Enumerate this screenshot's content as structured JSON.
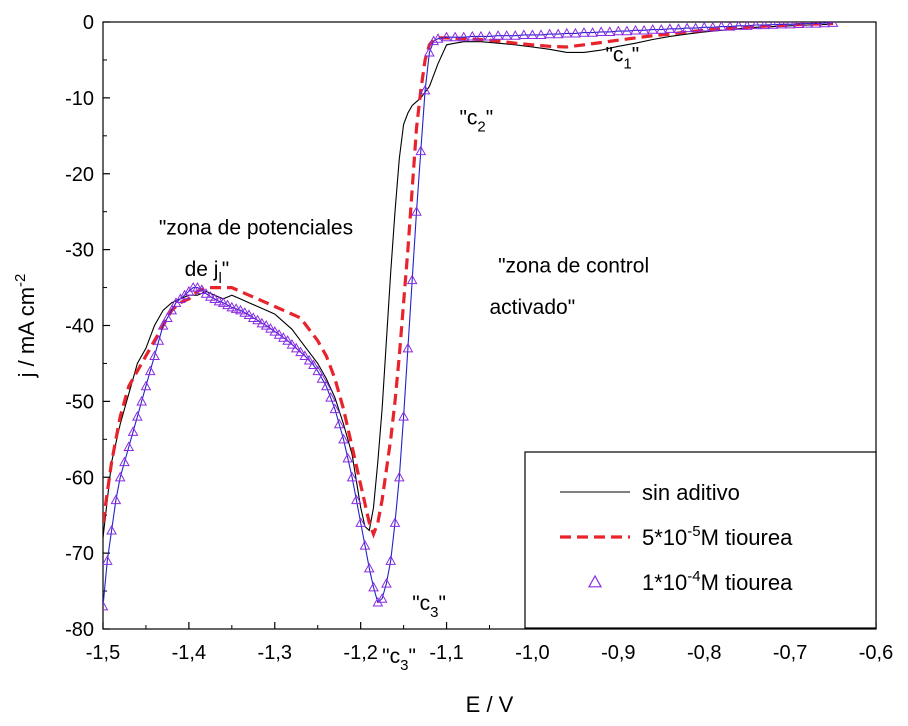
{
  "chart_data": {
    "type": "line",
    "title": "",
    "xlabel": "E / V",
    "ylabel_main": "j / mA cm",
    "ylabel_sup": "-2",
    "xlim": [
      -1.5,
      -0.6
    ],
    "ylim": [
      -80,
      0
    ],
    "x_ticks": [
      -1.5,
      -1.4,
      -1.3,
      -1.2,
      -1.1,
      -1.0,
      -0.9,
      -0.8,
      -0.7,
      -0.6
    ],
    "x_tick_labels": [
      "-1,5",
      "-1,4",
      "-1,3",
      "-1,2",
      "-1,1",
      "-1,0",
      "-0,9",
      "-0,8",
      "-0,7",
      "-0,6"
    ],
    "y_ticks": [
      0,
      -10,
      -20,
      -30,
      -40,
      -50,
      -60,
      -70,
      -80
    ],
    "y_tick_labels": [
      "0",
      "-10",
      "-20",
      "-30",
      "-40",
      "-50",
      "-60",
      "-70",
      "-80"
    ],
    "grid": false,
    "legend_position": "bottom-right",
    "series": [
      {
        "name": "sin aditivo",
        "style": "solid-thin",
        "color": "#000000",
        "x": [
          -1.5,
          -1.49,
          -1.48,
          -1.47,
          -1.46,
          -1.45,
          -1.44,
          -1.43,
          -1.42,
          -1.41,
          -1.4,
          -1.39,
          -1.38,
          -1.37,
          -1.36,
          -1.35,
          -1.34,
          -1.33,
          -1.32,
          -1.31,
          -1.3,
          -1.29,
          -1.28,
          -1.27,
          -1.26,
          -1.25,
          -1.24,
          -1.23,
          -1.22,
          -1.21,
          -1.2,
          -1.195,
          -1.19,
          -1.185,
          -1.18,
          -1.175,
          -1.17,
          -1.165,
          -1.16,
          -1.155,
          -1.15,
          -1.145,
          -1.14,
          -1.135,
          -1.13,
          -1.12,
          -1.11,
          -1.1,
          -1.09,
          -1.08,
          -1.06,
          -1.04,
          -1.02,
          -1.0,
          -0.98,
          -0.96,
          -0.94,
          -0.92,
          -0.9,
          -0.88,
          -0.86,
          -0.84,
          -0.82,
          -0.8,
          -0.78,
          -0.76,
          -0.74,
          -0.72,
          -0.7,
          -0.68,
          -0.65
        ],
        "y": [
          -68,
          -58,
          -53,
          -49,
          -45,
          -43,
          -40,
          -38,
          -37,
          -36.5,
          -36,
          -36,
          -35.5,
          -36,
          -36.5,
          -36,
          -36.5,
          -37,
          -37.5,
          -38,
          -38.5,
          -39.5,
          -40.5,
          -42,
          -43.5,
          -45,
          -47,
          -49.5,
          -53,
          -57,
          -64,
          -66.5,
          -67,
          -64,
          -58,
          -51,
          -42,
          -33,
          -25,
          -18,
          -13.5,
          -12,
          -11,
          -10.5,
          -10,
          -8.5,
          -5.5,
          -3,
          -2.8,
          -2.6,
          -2.6,
          -2.8,
          -3,
          -3.3,
          -3.6,
          -4,
          -4,
          -3.7,
          -3.2,
          -2.8,
          -2.3,
          -1.9,
          -1.6,
          -1.3,
          -1.1,
          -0.9,
          -0.7,
          -0.6,
          -0.5,
          -0.4,
          -0.3
        ]
      },
      {
        "name": "5*10-5M tiourea",
        "legend_pre": "5*10",
        "legend_sup": "-5",
        "legend_post": "M tiourea",
        "style": "dashed-thick",
        "color": "#e8232b",
        "x": [
          -1.5,
          -1.49,
          -1.48,
          -1.47,
          -1.46,
          -1.45,
          -1.44,
          -1.43,
          -1.42,
          -1.41,
          -1.4,
          -1.39,
          -1.38,
          -1.37,
          -1.36,
          -1.35,
          -1.34,
          -1.33,
          -1.32,
          -1.31,
          -1.3,
          -1.29,
          -1.28,
          -1.27,
          -1.26,
          -1.25,
          -1.24,
          -1.23,
          -1.22,
          -1.21,
          -1.2,
          -1.19,
          -1.185,
          -1.18,
          -1.175,
          -1.17,
          -1.165,
          -1.16,
          -1.155,
          -1.15,
          -1.145,
          -1.14,
          -1.135,
          -1.13,
          -1.125,
          -1.12,
          -1.115,
          -1.11,
          -1.1,
          -1.08,
          -1.06,
          -1.04,
          -1.02,
          -1.0,
          -0.98,
          -0.96,
          -0.94,
          -0.92,
          -0.9,
          -0.88,
          -0.86,
          -0.84,
          -0.82,
          -0.8,
          -0.78,
          -0.76,
          -0.74,
          -0.72,
          -0.7,
          -0.68,
          -0.65
        ],
        "y": [
          -66,
          -58,
          -52,
          -48,
          -46,
          -44,
          -42,
          -40,
          -38,
          -37,
          -36.5,
          -35.5,
          -35,
          -35,
          -35,
          -35,
          -35.5,
          -36,
          -36.5,
          -37,
          -37.5,
          -38,
          -38.5,
          -39,
          -40.5,
          -42,
          -44,
          -47,
          -51,
          -56,
          -61,
          -66,
          -67.5,
          -66,
          -63,
          -59,
          -55,
          -50,
          -44,
          -37,
          -30,
          -22,
          -14,
          -9,
          -5,
          -3,
          -2.3,
          -2.1,
          -2.1,
          -2.2,
          -2.3,
          -2.5,
          -2.8,
          -3,
          -3.2,
          -3.3,
          -3,
          -2.7,
          -2.4,
          -2.1,
          -1.8,
          -1.6,
          -1.3,
          -1.1,
          -0.9,
          -0.8,
          -0.6,
          -0.5,
          -0.4,
          -0.3,
          -0.2
        ]
      },
      {
        "name": "1*10-4M tiourea",
        "legend_pre": "1*10",
        "legend_sup": "-4",
        "legend_post": "M tiourea",
        "style": "triangles-line",
        "color": "#8a2be2",
        "line_color": "#2222cc",
        "x": [
          -1.5,
          -1.495,
          -1.49,
          -1.485,
          -1.48,
          -1.475,
          -1.47,
          -1.465,
          -1.46,
          -1.455,
          -1.45,
          -1.445,
          -1.44,
          -1.435,
          -1.43,
          -1.425,
          -1.42,
          -1.415,
          -1.41,
          -1.405,
          -1.4,
          -1.395,
          -1.39,
          -1.385,
          -1.38,
          -1.375,
          -1.37,
          -1.365,
          -1.36,
          -1.355,
          -1.35,
          -1.345,
          -1.34,
          -1.335,
          -1.33,
          -1.325,
          -1.32,
          -1.315,
          -1.31,
          -1.305,
          -1.3,
          -1.295,
          -1.29,
          -1.285,
          -1.28,
          -1.275,
          -1.27,
          -1.265,
          -1.26,
          -1.255,
          -1.25,
          -1.245,
          -1.24,
          -1.235,
          -1.23,
          -1.225,
          -1.22,
          -1.215,
          -1.21,
          -1.205,
          -1.2,
          -1.195,
          -1.19,
          -1.185,
          -1.18,
          -1.175,
          -1.17,
          -1.165,
          -1.16,
          -1.155,
          -1.15,
          -1.145,
          -1.14,
          -1.135,
          -1.13,
          -1.125,
          -1.12,
          -1.115,
          -1.11,
          -1.1,
          -1.09,
          -1.08,
          -1.07,
          -1.06,
          -1.05,
          -1.04,
          -1.03,
          -1.02,
          -1.01,
          -1.0,
          -0.99,
          -0.98,
          -0.97,
          -0.96,
          -0.95,
          -0.94,
          -0.93,
          -0.92,
          -0.91,
          -0.9,
          -0.89,
          -0.88,
          -0.87,
          -0.86,
          -0.85,
          -0.84,
          -0.83,
          -0.82,
          -0.81,
          -0.8,
          -0.79,
          -0.78,
          -0.77,
          -0.76,
          -0.75,
          -0.74,
          -0.73,
          -0.72,
          -0.71,
          -0.7,
          -0.69,
          -0.68,
          -0.67,
          -0.66,
          -0.65
        ],
        "y": [
          -77,
          -71,
          -67,
          -63,
          -60,
          -58,
          -56,
          -54,
          -52,
          -50,
          -48,
          -46,
          -44,
          -42,
          -40,
          -39,
          -38,
          -37,
          -36.5,
          -36,
          -35.5,
          -35,
          -35,
          -35.3,
          -35.8,
          -36.2,
          -36.5,
          -36.8,
          -37,
          -37.3,
          -37.6,
          -37.8,
          -38,
          -38.3,
          -38.6,
          -39,
          -39.3,
          -39.7,
          -40,
          -40.4,
          -40.8,
          -41.2,
          -41.6,
          -42,
          -42.5,
          -43,
          -43.5,
          -44,
          -44.6,
          -45.2,
          -46,
          -47,
          -48,
          -49.5,
          -51,
          -53,
          -55,
          -57.5,
          -60,
          -63,
          -66,
          -69,
          -72,
          -74.5,
          -76.5,
          -76,
          -74,
          -71,
          -66,
          -60,
          -52,
          -43,
          -34,
          -25,
          -17,
          -9,
          -4,
          -2.5,
          -2.2,
          -2,
          -2,
          -2,
          -1.9,
          -1.9,
          -1.9,
          -1.8,
          -1.8,
          -1.8,
          -1.7,
          -1.7,
          -1.7,
          -1.6,
          -1.6,
          -1.5,
          -1.5,
          -1.4,
          -1.4,
          -1.3,
          -1.3,
          -1.2,
          -1.2,
          -1.1,
          -1.1,
          -1.0,
          -1.0,
          -0.9,
          -0.9,
          -0.8,
          -0.8,
          -0.7,
          -0.7,
          -0.6,
          -0.6,
          -0.5,
          -0.5,
          -0.4,
          -0.4,
          -0.35,
          -0.3,
          -0.3,
          -0.25,
          -0.2,
          -0.2,
          -0.15,
          -0.1
        ]
      }
    ],
    "annotations": [
      {
        "id": "c1",
        "pre": "\"c",
        "sub": "1",
        "post": "\"",
        "x": -0.915,
        "y": -5.2
      },
      {
        "id": "c2",
        "pre": "\"c",
        "sub": "2",
        "post": "\"",
        "x": -1.085,
        "y": -13.5
      },
      {
        "id": "c3",
        "pre": "\"c",
        "sub": "3",
        "post": "\"",
        "x": -1.14,
        "y": -77.5
      },
      {
        "id": "c_low",
        "pre": "\"c",
        "sub": "3",
        "post": "\"",
        "x": -1.175,
        "y": -84.5
      },
      {
        "id": "zona-jl-line1",
        "pre": "\"zona de potenciales",
        "sub": "",
        "post": "",
        "x": -1.435,
        "y": -28
      },
      {
        "id": "zona-jl-line2",
        "pre": "de j",
        "sub": "l",
        "post": "\"",
        "x": -1.405,
        "y": -33.5
      },
      {
        "id": "zona-control-line1",
        "pre": "\"zona de control",
        "sub": "",
        "post": "",
        "x": -1.04,
        "y": -33
      },
      {
        "id": "zona-control-line2",
        "pre": "activado\"",
        "sub": "",
        "post": "",
        "x": -1.05,
        "y": -38.5
      }
    ]
  }
}
